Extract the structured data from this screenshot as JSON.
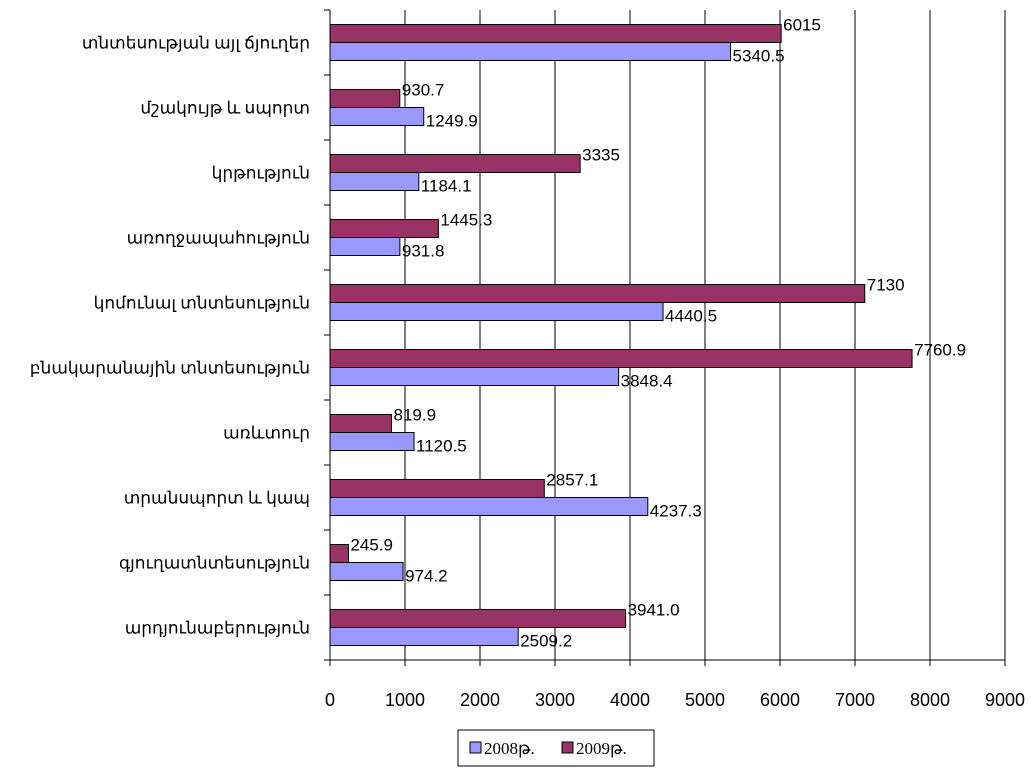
{
  "chart_data": {
    "type": "bar",
    "orientation": "horizontal",
    "categories": [
      "արդյունաբերություն",
      "գյուղատնտեսություն",
      "տրանսպորտ և կապ",
      "առևտուր",
      "բնակարանային տնտեսություն",
      "կոմունալ տնտեսություն",
      "առողջապահություն",
      "կրթություն",
      "մշակույթ և սպորտ",
      "տնտեսության այլ ճյուղեր"
    ],
    "series": [
      {
        "name": "2008թ.",
        "color": "#9999ff",
        "values": [
          2509.2,
          974.2,
          4237.3,
          1120.5,
          3848.4,
          4440.5,
          931.8,
          1184.1,
          1249.9,
          5340.5
        ],
        "labels": [
          "2509.2",
          "974.2",
          "4237.3",
          "1120.5",
          "3848.4",
          "4440.5",
          "931.8",
          "1184.1",
          "1249.9",
          "5340.5"
        ]
      },
      {
        "name": "2009թ.",
        "color": "#993366",
        "values": [
          3941.0,
          245.9,
          2857.1,
          819.9,
          7760.9,
          7130,
          1445.3,
          3335,
          930.7,
          6015
        ],
        "labels": [
          "3941.0",
          "245.9",
          "2857.1",
          "819.9",
          "7760.9",
          "7130",
          "1445.3",
          "3335",
          "930.7",
          "6015"
        ]
      }
    ],
    "xlim": [
      0,
      9000
    ],
    "xticks": [
      "0",
      "1000",
      "2000",
      "3000",
      "4000",
      "5000",
      "6000",
      "7000",
      "8000",
      "9000"
    ],
    "title": "",
    "xlabel": "",
    "ylabel": "",
    "grid": "vertical",
    "legend_position": "bottom"
  }
}
